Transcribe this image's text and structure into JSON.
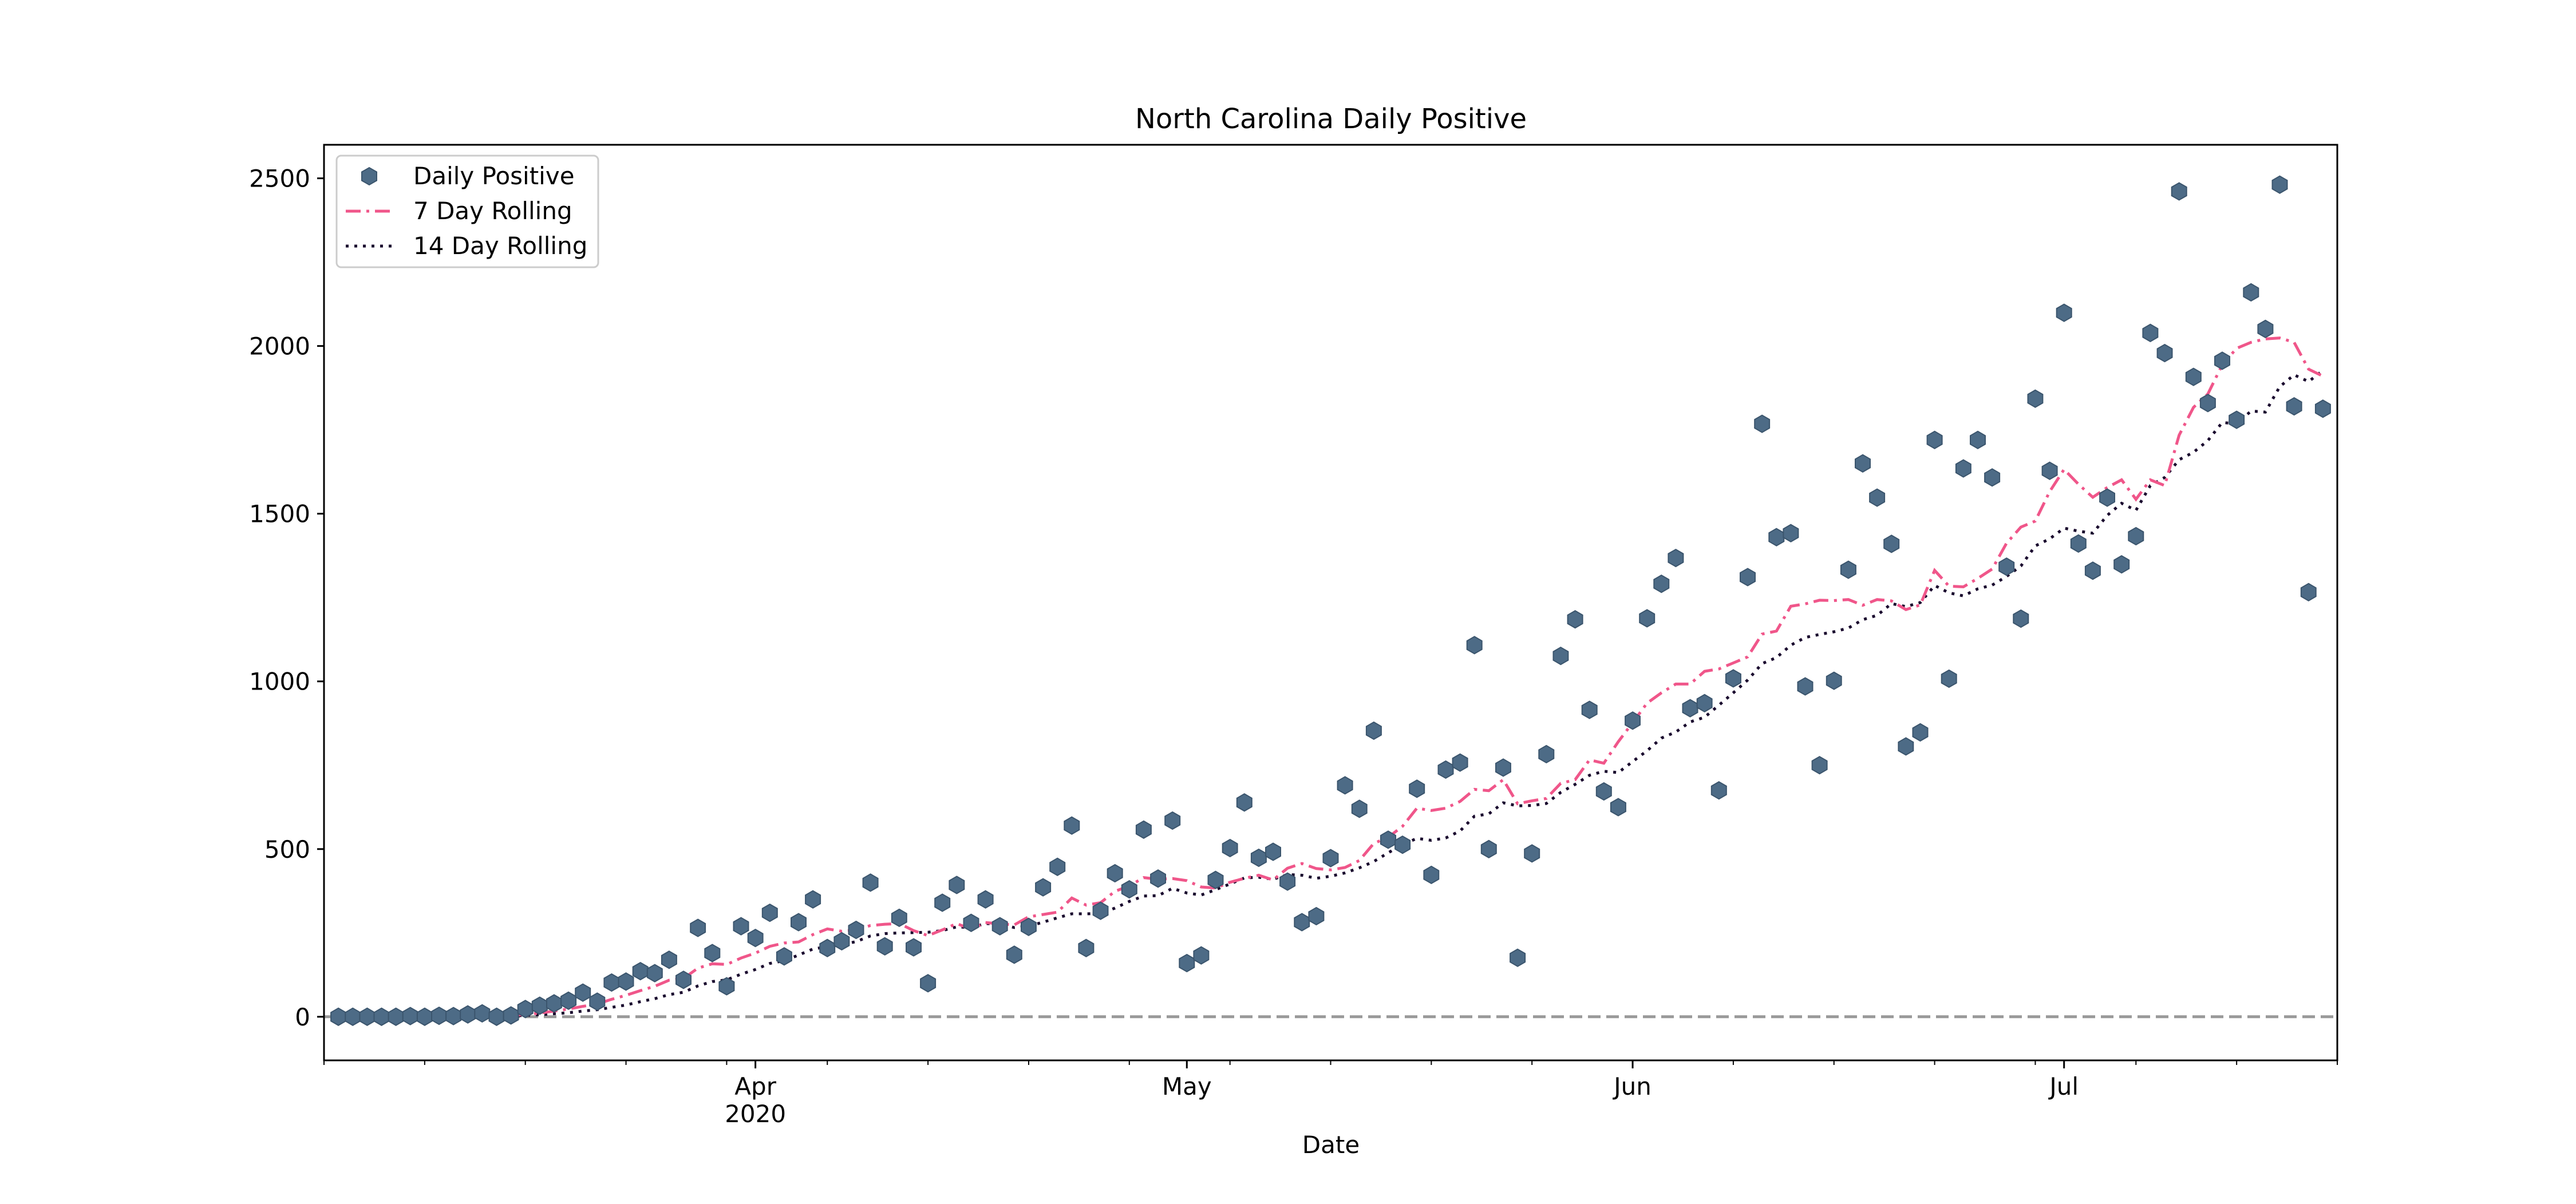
{
  "chart_data": {
    "type": "line",
    "title": "North Carolina Daily Positive",
    "xlabel": "Date",
    "ylabel": "",
    "x_start": "2020-03-03",
    "xlim": [
      "2020-03-02",
      "2020-07-20"
    ],
    "ylim": [
      -130,
      2600
    ],
    "yticks": [
      0,
      500,
      1000,
      1500,
      2000,
      2500
    ],
    "ytick_labels": [
      "0",
      "500",
      "1000",
      "1500",
      "2000",
      "2500"
    ],
    "xticks": [
      {
        "date": "2020-04-01",
        "label": "Apr",
        "sublabel": "2020"
      },
      {
        "date": "2020-05-01",
        "label": "May",
        "sublabel": ""
      },
      {
        "date": "2020-06-01",
        "label": "Jun",
        "sublabel": ""
      },
      {
        "date": "2020-07-01",
        "label": "Jul",
        "sublabel": ""
      }
    ],
    "zero_line": {
      "y": 0,
      "color": "#999999",
      "style": "dashed"
    },
    "grid": false,
    "legend_position": "top-left",
    "series": [
      {
        "name": "Daily Positive",
        "kind": "scatter",
        "color": "#4d6b86",
        "marker": "hexagon",
        "values": [
          0,
          0,
          0,
          0,
          0,
          2,
          0,
          3,
          2,
          7,
          10,
          0,
          4,
          23,
          33,
          40,
          48,
          72,
          45,
          102,
          105,
          136,
          130,
          170,
          110,
          265,
          190,
          91,
          270,
          235,
          310,
          180,
          282,
          350,
          205,
          225,
          259,
          400,
          210,
          295,
          207,
          100,
          340,
          393,
          280,
          350,
          270,
          185,
          268,
          386,
          447,
          570,
          205,
          316,
          428,
          380,
          558,
          412,
          585,
          160,
          183,
          408,
          503,
          639,
          474,
          492,
          403,
          282,
          300,
          473,
          690,
          620,
          853,
          528,
          513,
          680,
          423,
          737,
          758,
          1108,
          500,
          743,
          176,
          487,
          783,
          1076,
          1185,
          915,
          672,
          625,
          883,
          1188,
          1291,
          1368,
          920,
          935,
          675,
          1009,
          1311,
          1768,
          1430,
          1442,
          985,
          750,
          1002,
          1333,
          1650,
          1548,
          1410,
          806,
          848,
          1720,
          1008,
          1635,
          1720,
          1608,
          1342,
          1187,
          1843,
          1628,
          2099,
          1411,
          1330,
          1548,
          1349,
          1433,
          2039,
          1979,
          2461,
          1908,
          1830,
          1956,
          1780,
          2160,
          2051,
          2481,
          1820,
          1266,
          1813
        ]
      },
      {
        "name": "7 Day Rolling",
        "kind": "line",
        "color": "#f0568a",
        "dash": "dashdot",
        "values": []
      },
      {
        "name": "14 Day Rolling",
        "kind": "line",
        "color": "#1a0a2e",
        "dash": "dotted",
        "values": []
      }
    ]
  }
}
